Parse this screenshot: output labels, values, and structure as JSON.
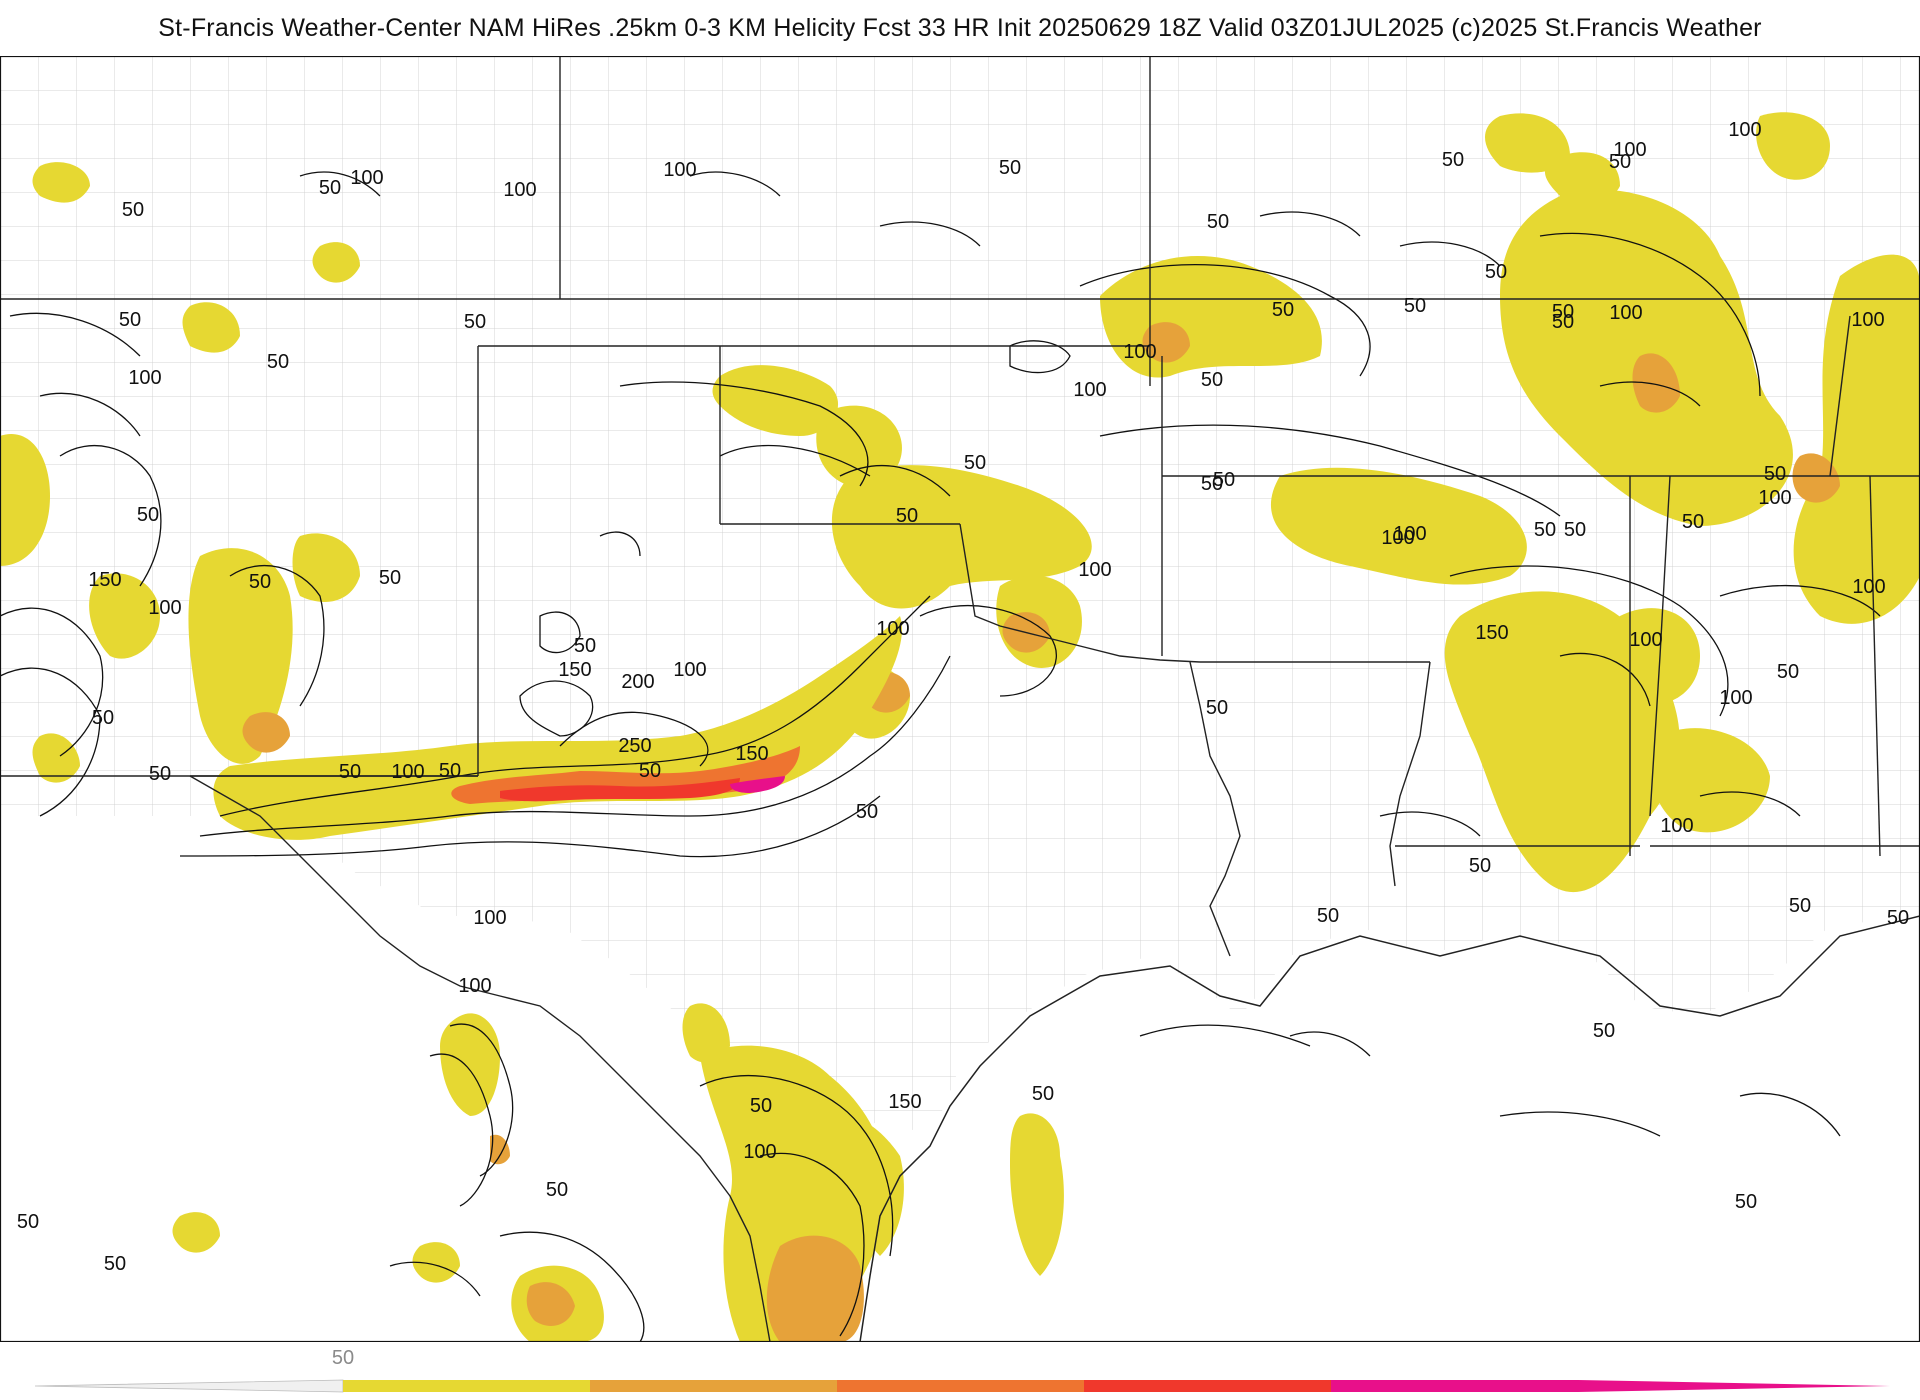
{
  "header": {
    "title": "St-Francis Weather-Center NAM HiRes .25km 0-3 KM Helicity Fcst 33 HR Init 20250629 18Z  Valid 03Z01JUL2025    (c)2025 St.Francis Weather"
  },
  "map": {
    "fill_colors": {
      "level_50": "#e6d832",
      "level_100": "#e6a23a",
      "level_150": "#ee7430",
      "level_200": "#f0382c",
      "level_250": "#e8108a"
    },
    "contour_color": "#111111",
    "state_border_color": "#222222",
    "county_border_color": "#bbbbbb",
    "contour_labels": [
      {
        "text": "50"
      },
      {
        "text": "100"
      },
      {
        "text": "100"
      },
      {
        "text": "100"
      },
      {
        "text": "50"
      },
      {
        "text": "50"
      },
      {
        "text": "50"
      },
      {
        "text": "50"
      },
      {
        "text": "100"
      },
      {
        "text": "50"
      },
      {
        "text": "150"
      },
      {
        "text": "100"
      },
      {
        "text": "50"
      },
      {
        "text": "50"
      },
      {
        "text": "50"
      },
      {
        "text": "50"
      },
      {
        "text": "50"
      },
      {
        "text": "100"
      },
      {
        "text": "50"
      },
      {
        "text": "100"
      },
      {
        "text": "50"
      },
      {
        "text": "50"
      },
      {
        "text": "50"
      },
      {
        "text": "100"
      },
      {
        "text": "50"
      },
      {
        "text": "50"
      },
      {
        "text": "100"
      },
      {
        "text": "50"
      },
      {
        "text": "50"
      },
      {
        "text": "50"
      },
      {
        "text": "100"
      },
      {
        "text": "150"
      },
      {
        "text": "200"
      },
      {
        "text": "100"
      },
      {
        "text": "100"
      },
      {
        "text": "50"
      },
      {
        "text": "50"
      },
      {
        "text": "250"
      },
      {
        "text": "150"
      },
      {
        "text": "50"
      },
      {
        "text": "50"
      },
      {
        "text": "100"
      },
      {
        "text": "50"
      },
      {
        "text": "50"
      },
      {
        "text": "50"
      },
      {
        "text": "100"
      },
      {
        "text": "50"
      },
      {
        "text": "100"
      },
      {
        "text": "50"
      },
      {
        "text": "100"
      },
      {
        "text": "50"
      },
      {
        "text": "50"
      },
      {
        "text": "100"
      },
      {
        "text": "150"
      },
      {
        "text": "100"
      },
      {
        "text": "100"
      },
      {
        "text": "100"
      },
      {
        "text": "50"
      },
      {
        "text": "100"
      },
      {
        "text": "50"
      },
      {
        "text": "100"
      },
      {
        "text": "50"
      },
      {
        "text": "50"
      },
      {
        "text": "50"
      },
      {
        "text": "50"
      },
      {
        "text": "50"
      },
      {
        "text": "50"
      },
      {
        "text": "50"
      },
      {
        "text": "50"
      },
      {
        "text": "100"
      },
      {
        "text": "100"
      },
      {
        "text": "150"
      },
      {
        "text": "100"
      },
      {
        "text": "50"
      },
      {
        "text": "50"
      },
      {
        "text": "50"
      },
      {
        "text": "50"
      },
      {
        "text": "50"
      }
    ]
  },
  "colorbar": {
    "tick_label": "50",
    "segments": [
      {
        "color": "#e6d832"
      },
      {
        "color": "#e6a23a"
      },
      {
        "color": "#ee7430"
      },
      {
        "color": "#f0382c"
      },
      {
        "color": "#e8108a"
      }
    ]
  }
}
